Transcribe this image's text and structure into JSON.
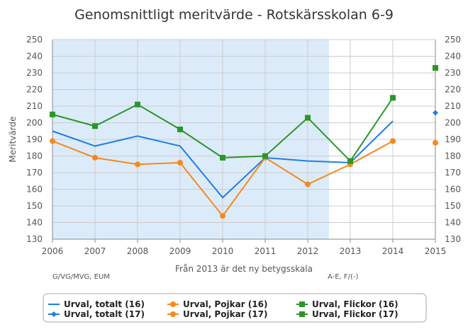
{
  "chart_data": {
    "type": "line",
    "title": "Genomsnittligt meritvärde - Rotskärsskolan 6-9",
    "ylabel": "Meritvärde",
    "xlabel": "Från 2013 är det ny betygsskala",
    "note_left": "G/VG/MVG, EUM",
    "note_right": "A-E, F/(-)",
    "x": [
      2006,
      2007,
      2008,
      2009,
      2010,
      2011,
      2012,
      2013,
      2014,
      2015
    ],
    "xlim": [
      2006,
      2015
    ],
    "ylim": [
      130,
      250
    ],
    "yticks": [
      130,
      140,
      150,
      160,
      170,
      180,
      190,
      200,
      210,
      220,
      230,
      240,
      250
    ],
    "shaded_region": [
      2006,
      2012.5
    ],
    "grid": true,
    "legend_position": "bottom",
    "series": [
      {
        "name": "Urval, totalt (16)",
        "color": "#1e7fe6",
        "marker": "none",
        "line": true,
        "values": [
          195,
          186,
          192,
          186,
          155,
          179,
          177,
          176,
          201,
          null
        ]
      },
      {
        "name": "Urval, Pojkar (16)",
        "color": "#f5891e",
        "marker": "circle",
        "line": true,
        "values": [
          189,
          179,
          175,
          176,
          144,
          179,
          163,
          175,
          189,
          null
        ]
      },
      {
        "name": "Urval, Flickor (16)",
        "color": "#2a962a",
        "marker": "square",
        "line": true,
        "values": [
          205,
          198,
          211,
          196,
          179,
          180,
          203,
          177,
          215,
          null
        ]
      },
      {
        "name": "Urval, totalt (17)",
        "color": "#1e7fe6",
        "marker": "diamond",
        "line": false,
        "values": [
          null,
          null,
          null,
          null,
          null,
          null,
          null,
          null,
          null,
          206
        ]
      },
      {
        "name": "Urval, Pojkar (17)",
        "color": "#f5891e",
        "marker": "circle",
        "line": false,
        "values": [
          null,
          null,
          null,
          null,
          null,
          null,
          null,
          null,
          null,
          188
        ]
      },
      {
        "name": "Urval, Flickor (17)",
        "color": "#2a962a",
        "marker": "square",
        "line": false,
        "values": [
          null,
          null,
          null,
          null,
          null,
          null,
          null,
          null,
          null,
          233
        ]
      }
    ]
  }
}
